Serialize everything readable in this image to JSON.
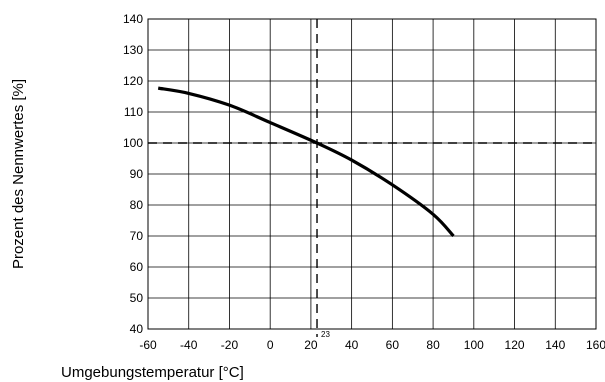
{
  "chart_data": {
    "type": "line",
    "title": "",
    "xlabel": "Umgebungstemperatur [°C]",
    "ylabel": "Prozent des Nennwertes [%]",
    "xlim": [
      -60,
      160
    ],
    "ylim": [
      40,
      140
    ],
    "x_ticks": [
      "-60",
      "-40",
      "-20",
      "0",
      "20",
      "40",
      "60",
      "80",
      "100",
      "120",
      "140",
      "160"
    ],
    "y_ticks": [
      "40",
      "50",
      "60",
      "70",
      "80",
      "90",
      "100",
      "110",
      "120",
      "130",
      "140"
    ],
    "grid": true,
    "series": [
      {
        "x": [
          -55,
          -40,
          -20,
          0,
          23,
          40,
          60,
          80,
          90
        ],
        "y": [
          117.7,
          116,
          112.2,
          106.6,
          100,
          94.5,
          86.5,
          77,
          70
        ]
      }
    ],
    "reference_lines": {
      "x": 23,
      "x_label": "23",
      "y": 100
    },
    "colors": {
      "curve": "#000000",
      "grid": "#000000",
      "background": "#ffffff"
    }
  }
}
